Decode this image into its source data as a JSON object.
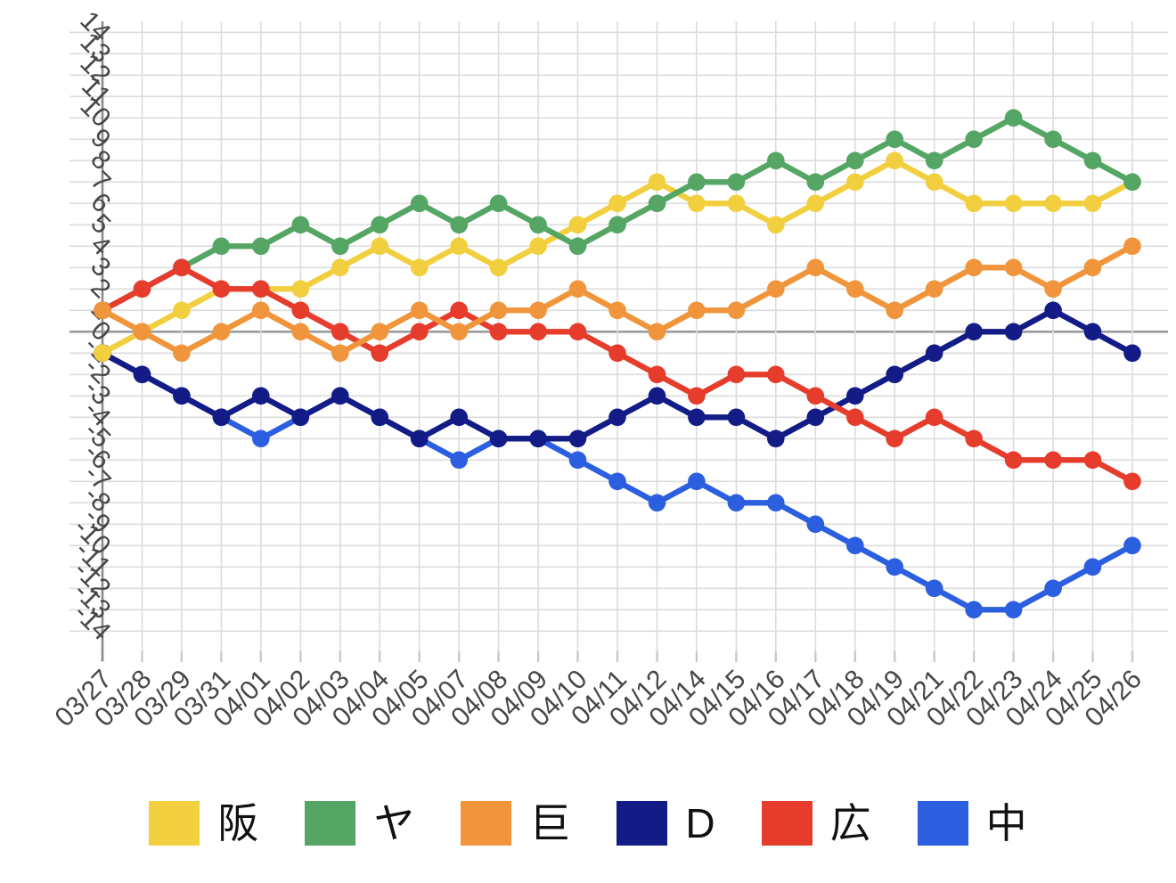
{
  "chart_data": {
    "type": "line",
    "title": "",
    "xlabel": "",
    "ylabel": "",
    "x_labels": [
      "03/27",
      "03/28",
      "03/29",
      "03/31",
      "04/01",
      "04/02",
      "04/03",
      "04/04",
      "04/05",
      "04/07",
      "04/08",
      "04/09",
      "04/10",
      "04/11",
      "04/12",
      "04/14",
      "04/15",
      "04/16",
      "04/17",
      "04/18",
      "04/19",
      "04/21",
      "04/22",
      "04/23",
      "04/24",
      "04/25",
      "04/26"
    ],
    "ylim": [
      -14,
      14
    ],
    "y_ticks": [
      -14,
      -13,
      -12,
      -11,
      -10,
      -9,
      -8,
      -7,
      -6,
      -5,
      -4,
      -3,
      -2,
      -1,
      0,
      1,
      2,
      3,
      4,
      5,
      6,
      7,
      8,
      9,
      10,
      11,
      12,
      13,
      14
    ],
    "grid": true,
    "legend_position": "bottom",
    "series": [
      {
        "name": "阪",
        "color": "#F2CF3E",
        "values": [
          -1,
          0,
          1,
          2,
          2,
          2,
          3,
          4,
          3,
          4,
          3,
          4,
          5,
          6,
          7,
          6,
          6,
          5,
          6,
          7,
          8,
          7,
          6,
          6,
          6,
          6,
          7
        ]
      },
      {
        "name": "ヤ",
        "color": "#55A565",
        "values": [
          1,
          2,
          3,
          4,
          4,
          5,
          4,
          5,
          6,
          5,
          6,
          5,
          4,
          5,
          6,
          7,
          7,
          8,
          7,
          8,
          9,
          8,
          9,
          10,
          9,
          8,
          7
        ]
      },
      {
        "name": "巨",
        "color": "#F0953C",
        "values": [
          1,
          0,
          -1,
          0,
          1,
          0,
          -1,
          0,
          1,
          0,
          1,
          1,
          2,
          1,
          0,
          1,
          1,
          2,
          3,
          2,
          1,
          2,
          3,
          3,
          2,
          3,
          4
        ]
      },
      {
        "name": "D",
        "color": "#131C86",
        "values": [
          -1,
          -2,
          -3,
          -4,
          -3,
          -4,
          -3,
          -4,
          -5,
          -4,
          -5,
          -5,
          -5,
          -4,
          -3,
          -4,
          -4,
          -5,
          -4,
          -3,
          -2,
          -1,
          0,
          0,
          1,
          0,
          -1
        ]
      },
      {
        "name": "広",
        "color": "#E53C2C",
        "values": [
          1,
          2,
          3,
          2,
          2,
          1,
          0,
          -1,
          0,
          1,
          0,
          0,
          0,
          -1,
          -2,
          -3,
          -2,
          -2,
          -3,
          -4,
          -5,
          -4,
          -5,
          -6,
          -6,
          -6,
          -7
        ]
      },
      {
        "name": "中",
        "color": "#2C5FDF",
        "values": [
          -1,
          -2,
          -3,
          -4,
          -5,
          -4,
          -3,
          -4,
          -5,
          -6,
          -5,
          -5,
          -6,
          -7,
          -8,
          -7,
          -8,
          -8,
          -9,
          -10,
          -11,
          -12,
          -13,
          -13,
          -12,
          -11,
          -10
        ]
      }
    ],
    "draw_order": [
      "中",
      "D",
      "阪",
      "ヤ",
      "広",
      "巨"
    ],
    "style": {
      "grid_color": "#DCDCDC",
      "zero_line_color": "#9B9B9B",
      "axis_color": "#8C8C8C",
      "x_tick_color": "#C9C9C9",
      "tick_label_color": "#474747",
      "background": "#FFFFFF",
      "line_width": 6.4,
      "marker_radius": 9.8
    }
  }
}
